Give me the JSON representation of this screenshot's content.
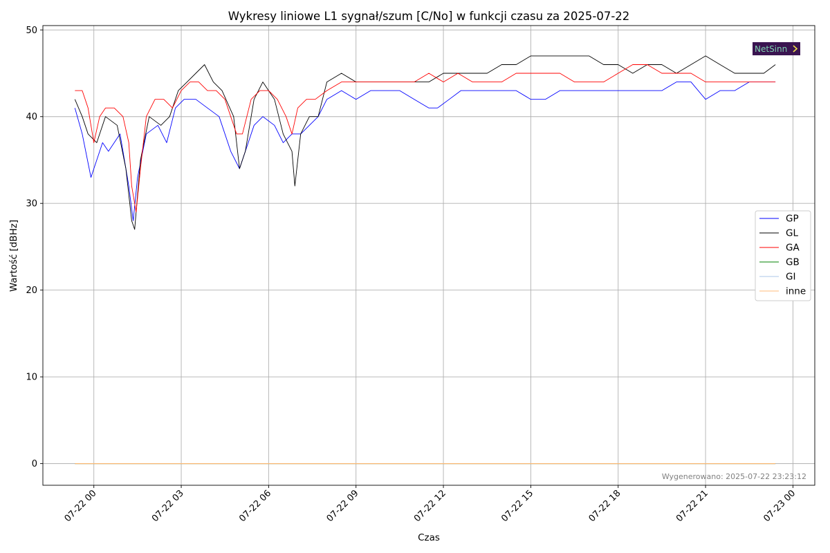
{
  "chart_data": {
    "type": "line",
    "title": "Wykresy liniowe L1 sygnał/szum [C/No] w funkcji czasu za 2025-07-22",
    "xlabel": "Czas",
    "ylabel": "Wartość [dBHz]",
    "x_unit": "hours since 2025-07-22 00:00",
    "xlim": [
      -1.75,
      24.75
    ],
    "ylim": [
      -2.5,
      50.5
    ],
    "x_ticks": [
      {
        "value": 0,
        "label": "07-22 00"
      },
      {
        "value": 3,
        "label": "07-22 03"
      },
      {
        "value": 6,
        "label": "07-22 06"
      },
      {
        "value": 9,
        "label": "07-22 09"
      },
      {
        "value": 12,
        "label": "07-22 12"
      },
      {
        "value": 15,
        "label": "07-22 15"
      },
      {
        "value": 18,
        "label": "07-22 18"
      },
      {
        "value": 21,
        "label": "07-22 21"
      },
      {
        "value": 24,
        "label": "07-23 00"
      }
    ],
    "y_ticks": [
      0,
      10,
      20,
      30,
      40,
      50
    ],
    "grid": true,
    "legend_position": "center-right",
    "series": [
      {
        "name": "GP",
        "color": "#0000ff",
        "x": [
          -0.65,
          -0.4,
          -0.1,
          0.3,
          0.5,
          0.9,
          1.2,
          1.35,
          1.5,
          1.8,
          2.2,
          2.5,
          2.8,
          3.1,
          3.5,
          3.9,
          4.3,
          4.7,
          5.0,
          5.2,
          5.5,
          5.8,
          6.2,
          6.5,
          6.8,
          7.1,
          7.4,
          7.7,
          8.0,
          8.5,
          9.0,
          9.5,
          10.0,
          10.5,
          11.0,
          11.5,
          11.8,
          12.2,
          12.6,
          13.0,
          13.5,
          14.0,
          14.5,
          15.0,
          15.5,
          16.0,
          16.5,
          17.0,
          17.5,
          18.0,
          18.5,
          19.0,
          19.5,
          20.0,
          20.5,
          21.0,
          21.5,
          22.0,
          22.5,
          23.0,
          23.4
        ],
        "y": [
          41,
          38,
          33,
          37,
          36,
          38,
          32,
          28,
          33,
          38,
          39,
          37,
          41,
          42,
          42,
          41,
          40,
          36,
          34,
          36,
          39,
          40,
          39,
          37,
          38,
          38,
          39,
          40,
          42,
          43,
          42,
          43,
          43,
          43,
          42,
          41,
          41,
          42,
          43,
          43,
          43,
          43,
          43,
          42,
          42,
          43,
          43,
          43,
          43,
          43,
          43,
          43,
          43,
          44,
          44,
          42,
          43,
          43,
          44,
          44,
          44
        ]
      },
      {
        "name": "GL",
        "color": "#000000",
        "x": [
          -0.65,
          -0.4,
          -0.2,
          0.1,
          0.4,
          0.8,
          1.1,
          1.3,
          1.4,
          1.6,
          1.9,
          2.3,
          2.6,
          2.9,
          3.2,
          3.5,
          3.8,
          4.1,
          4.4,
          4.8,
          5.0,
          5.2,
          5.5,
          5.8,
          6.2,
          6.5,
          6.8,
          6.9,
          7.1,
          7.4,
          7.7,
          8.0,
          8.5,
          9.0,
          9.5,
          10.0,
          10.5,
          11.0,
          11.5,
          12.0,
          12.5,
          13.0,
          13.5,
          14.0,
          14.5,
          15.0,
          15.5,
          16.0,
          16.5,
          17.0,
          17.5,
          18.0,
          18.5,
          19.0,
          19.5,
          20.0,
          20.5,
          21.0,
          21.5,
          22.0,
          22.5,
          23.0,
          23.4
        ],
        "y": [
          42,
          40,
          38,
          37,
          40,
          39,
          34,
          28,
          27,
          35,
          40,
          39,
          40,
          43,
          44,
          45,
          46,
          44,
          43,
          40,
          34,
          36,
          42,
          44,
          42,
          38,
          36,
          32,
          38,
          40,
          40,
          44,
          45,
          44,
          44,
          44,
          44,
          44,
          44,
          45,
          45,
          45,
          45,
          46,
          46,
          47,
          47,
          47,
          47,
          47,
          46,
          46,
          45,
          46,
          46,
          45,
          46,
          47,
          46,
          45,
          45,
          45,
          46
        ]
      },
      {
        "name": "GA",
        "color": "#ff0000",
        "x": [
          -0.65,
          -0.4,
          -0.2,
          0.0,
          0.2,
          0.4,
          0.7,
          1.0,
          1.2,
          1.3,
          1.45,
          1.6,
          1.8,
          2.1,
          2.4,
          2.7,
          3.0,
          3.3,
          3.6,
          3.9,
          4.2,
          4.5,
          4.7,
          4.9,
          5.1,
          5.4,
          5.7,
          6.0,
          6.3,
          6.6,
          6.8,
          7.0,
          7.3,
          7.6,
          8.0,
          8.5,
          9.0,
          9.5,
          10.0,
          10.5,
          11.0,
          11.5,
          12.0,
          12.5,
          13.0,
          13.5,
          14.0,
          14.5,
          15.0,
          15.5,
          16.0,
          16.5,
          17.0,
          17.5,
          18.0,
          18.5,
          19.0,
          19.5,
          20.0,
          20.5,
          21.0,
          21.5,
          22.0,
          22.5,
          23.0,
          23.4
        ],
        "y": [
          43,
          43,
          41,
          37,
          40,
          41,
          41,
          40,
          37,
          32,
          29,
          34,
          40,
          42,
          42,
          41,
          43,
          44,
          44,
          43,
          43,
          42,
          40,
          38,
          38,
          42,
          43,
          43,
          42,
          40,
          38,
          41,
          42,
          42,
          43,
          44,
          44,
          44,
          44,
          44,
          44,
          45,
          44,
          45,
          44,
          44,
          44,
          45,
          45,
          45,
          45,
          44,
          44,
          44,
          45,
          46,
          46,
          45,
          45,
          45,
          44,
          44,
          44,
          44,
          44,
          44
        ]
      },
      {
        "name": "GB",
        "color": "#008000",
        "x": [
          -0.65,
          23.4
        ],
        "y": [
          0,
          0
        ]
      },
      {
        "name": "GI",
        "color": "#aec7e8",
        "x": [
          -0.65,
          23.4
        ],
        "y": [
          0,
          0
        ]
      },
      {
        "name": "inne",
        "color": "#ffbb78",
        "x": [
          -0.65,
          23.4
        ],
        "y": [
          0,
          0
        ]
      }
    ],
    "footer": "Wygenerowano: 2025-07-22 23:23:12",
    "logo_text": "NetSinn"
  }
}
